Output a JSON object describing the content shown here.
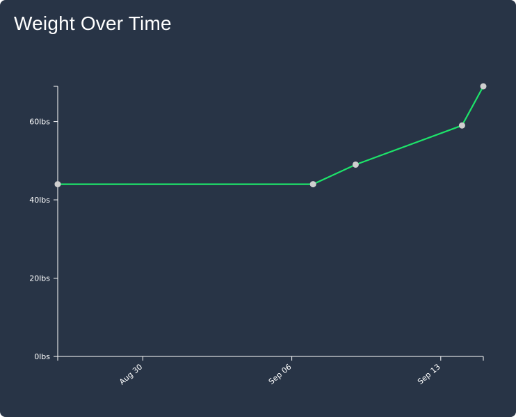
{
  "card": {
    "title": "Weight Over Time"
  },
  "colors": {
    "background": "#283446",
    "line": "#1de46a",
    "point": "#cfcfcf",
    "axis": "#ffffff",
    "text": "#ffffff"
  },
  "chart_data": {
    "type": "line",
    "title": "Weight Over Time",
    "xlabel": "",
    "ylabel": "",
    "grid": false,
    "xlim": [
      "2023-08-26",
      "2023-09-15"
    ],
    "ylim": [
      0,
      69
    ],
    "x_ticks": [
      {
        "date": "2023-08-30",
        "label": "Aug 30"
      },
      {
        "date": "2023-09-06",
        "label": "Sep 06"
      },
      {
        "date": "2023-09-13",
        "label": "Sep 13"
      }
    ],
    "y_ticks": [
      {
        "value": 0,
        "label": "0lbs"
      },
      {
        "value": 20,
        "label": "20lbs"
      },
      {
        "value": 40,
        "label": "40lbs"
      },
      {
        "value": 60,
        "label": "60lbs"
      }
    ],
    "series": [
      {
        "points": [
          {
            "x": "2023-08-26",
            "y": 44
          },
          {
            "x": "2023-09-07",
            "y": 44
          },
          {
            "x": "2023-09-09",
            "y": 49
          },
          {
            "x": "2023-09-14",
            "y": 59
          },
          {
            "x": "2023-09-15",
            "y": 69
          }
        ]
      }
    ]
  }
}
